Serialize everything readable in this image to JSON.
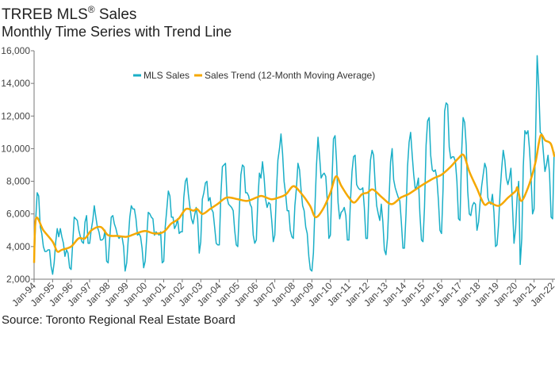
{
  "title": {
    "main": "TRREB MLS",
    "reg": "®",
    "rest": " Sales"
  },
  "subtitle": "Monthly Time Series with Trend Line",
  "source": "Source: Toronto Regional Real Estate Board",
  "chart_data": {
    "type": "line",
    "title": "TRREB MLS® Sales",
    "subtitle": "Monthly Time Series with Trend Line",
    "xlabel": "",
    "ylabel": "",
    "ylim": [
      2000,
      16000
    ],
    "yticks": [
      2000,
      4000,
      6000,
      8000,
      10000,
      12000,
      14000,
      16000
    ],
    "ytick_labels": [
      "2,000",
      "4,000",
      "6,000",
      "8,000",
      "10,000",
      "12,000",
      "14,000",
      "16,000"
    ],
    "xlim": [
      1994,
      2022
    ],
    "xtick_labels": [
      "Jan-94",
      "Jan-95",
      "Jan-96",
      "Jan-97",
      "Jan-98",
      "Jan-99",
      "Jan-00",
      "Jan-01",
      "Jan-02",
      "Jan-03",
      "Jan-04",
      "Jan-05",
      "Jan-06",
      "Jan-07",
      "Jan-08",
      "Jan-09",
      "Jan-10",
      "Jan-11",
      "Jan-12",
      "Jan-13",
      "Jan-14",
      "Jan-15",
      "Jan-16",
      "Jan-17",
      "Jan-18",
      "Jan-19",
      "Jan-20",
      "Jan-21",
      "Jan-22"
    ],
    "grid": false,
    "legend_position": "top-center",
    "colors": {
      "sales": "#1aafc7",
      "trend": "#f5a800",
      "axis": "#777777"
    },
    "series": [
      {
        "name": "MLS Sales",
        "start_year": 1994,
        "frequency": "monthly",
        "values": [
          3000,
          5500,
          7300,
          7100,
          5200,
          4800,
          4000,
          3700,
          3700,
          3800,
          3800,
          2800,
          2300,
          3000,
          4300,
          5100,
          4600,
          5100,
          4600,
          4200,
          3400,
          3800,
          3600,
          2700,
          2600,
          4200,
          5800,
          5700,
          5600,
          5000,
          4600,
          4300,
          4200,
          5500,
          5900,
          4200,
          4200,
          5000,
          5600,
          6500,
          5800,
          5200,
          4900,
          4400,
          4400,
          4500,
          5000,
          3100,
          3000,
          4500,
          5800,
          5900,
          5400,
          5100,
          4700,
          4500,
          4600,
          4600,
          4000,
          2500,
          3000,
          4400,
          5800,
          6500,
          6300,
          6300,
          5700,
          4700,
          4800,
          4600,
          3900,
          2700,
          3100,
          4600,
          6100,
          6000,
          5800,
          5700,
          4700,
          4900,
          4800,
          4700,
          4900,
          3000,
          3100,
          5200,
          6300,
          7400,
          7100,
          5800,
          5800,
          5100,
          5300,
          5700,
          4800,
          4900,
          4900,
          7000,
          8000,
          8200,
          7200,
          6400,
          5700,
          5400,
          5900,
          6400,
          5700,
          3600,
          4300,
          6900,
          7300,
          7900,
          8000,
          6800,
          7000,
          6300,
          6100,
          5200,
          4200,
          4100,
          4100,
          7100,
          8900,
          9000,
          9100,
          7000,
          6600,
          6500,
          6400,
          6200,
          5000,
          4100,
          4000,
          6300,
          8400,
          9000,
          8900,
          7300,
          7300,
          7100,
          6600,
          6400,
          4700,
          4200,
          4400,
          6800,
          8500,
          8200,
          9200,
          8300,
          6900,
          6400,
          6700,
          6600,
          5600,
          4300,
          4700,
          7300,
          9300,
          10000,
          10900,
          9700,
          8000,
          7200,
          6200,
          6200,
          5000,
          4600,
          4500,
          6500,
          7600,
          9100,
          8700,
          7500,
          6500,
          6200,
          5200,
          4800,
          3400,
          2600,
          2500,
          3600,
          6500,
          9000,
          10700,
          9500,
          8200,
          8400,
          8500,
          8300,
          6800,
          4500,
          4700,
          8000,
          10600,
          10800,
          9200,
          6700,
          5700,
          6100,
          6200,
          6400,
          5900,
          4400,
          4400,
          6800,
          8600,
          9500,
          9600,
          7800,
          7600,
          7500,
          7500,
          7600,
          6400,
          4500,
          4500,
          7500,
          9300,
          9900,
          9600,
          7800,
          6500,
          6000,
          5600,
          6600,
          5500,
          3800,
          3500,
          4500,
          6900,
          9200,
          10000,
          8100,
          7600,
          7300,
          7000,
          6800,
          5500,
          3900,
          3900,
          6000,
          8900,
          10400,
          11000,
          9600,
          8400,
          7500,
          7700,
          8200,
          6000,
          4400,
          4300,
          6400,
          10200,
          11700,
          11900,
          9600,
          8700,
          8600,
          8700,
          8200,
          6800,
          5000,
          4800,
          7500,
          12300,
          12800,
          12700,
          10100,
          9400,
          9500,
          9500,
          9200,
          8000,
          5700,
          5600,
          9700,
          11900,
          11600,
          10200,
          7400,
          6000,
          5900,
          6500,
          6700,
          6600,
          5000,
          5500,
          6700,
          7700,
          8400,
          9100,
          8800,
          7000,
          6700,
          6600,
          7200,
          6100,
          4000,
          4100,
          5400,
          7400,
          8800,
          9900,
          9300,
          8200,
          7800,
          8200,
          8800,
          6400,
          4200,
          5100,
          7000,
          8000,
          2900,
          4500,
          8900,
          11100,
          10900,
          11100,
          10000,
          8400,
          6000,
          6300,
          10900,
          15700,
          13800,
          11000,
          10900,
          9800,
          8600,
          9000,
          9600,
          8500,
          5800,
          5700,
          9800
        ]
      },
      {
        "name": "Sales Trend (12-Month Moving Average)",
        "points": [
          [
            1994.0,
            3000
          ],
          [
            1994.1,
            5700
          ],
          [
            1994.5,
            5000
          ],
          [
            1995.0,
            4300
          ],
          [
            1995.25,
            3700
          ],
          [
            1995.5,
            3800
          ],
          [
            1996.0,
            4000
          ],
          [
            1996.4,
            4500
          ],
          [
            1996.75,
            4500
          ],
          [
            1997.1,
            5000
          ],
          [
            1997.6,
            5200
          ],
          [
            1998.0,
            4700
          ],
          [
            1998.5,
            4650
          ],
          [
            1999.0,
            4600
          ],
          [
            1999.5,
            4800
          ],
          [
            2000.0,
            4950
          ],
          [
            2000.5,
            4800
          ],
          [
            2001.0,
            4900
          ],
          [
            2001.4,
            5400
          ],
          [
            2001.8,
            5700
          ],
          [
            2002.2,
            6300
          ],
          [
            2002.6,
            6200
          ],
          [
            2002.8,
            6300
          ],
          [
            2003.1,
            6000
          ],
          [
            2003.5,
            6300
          ],
          [
            2003.9,
            6600
          ],
          [
            2004.4,
            7000
          ],
          [
            2005.0,
            6900
          ],
          [
            2005.5,
            6800
          ],
          [
            2006.0,
            7000
          ],
          [
            2006.3,
            7100
          ],
          [
            2006.8,
            6900
          ],
          [
            2007.2,
            7000
          ],
          [
            2007.6,
            7200
          ],
          [
            2008.0,
            7700
          ],
          [
            2008.4,
            7300
          ],
          [
            2008.9,
            6500
          ],
          [
            2009.2,
            5800
          ],
          [
            2009.6,
            6300
          ],
          [
            2010.0,
            7300
          ],
          [
            2010.3,
            8300
          ],
          [
            2010.6,
            7700
          ],
          [
            2011.0,
            7000
          ],
          [
            2011.3,
            6700
          ],
          [
            2011.7,
            7200
          ],
          [
            2012.0,
            7300
          ],
          [
            2012.3,
            7500
          ],
          [
            2012.8,
            7000
          ],
          [
            2013.3,
            6600
          ],
          [
            2013.8,
            7000
          ],
          [
            2014.2,
            7200
          ],
          [
            2014.6,
            7500
          ],
          [
            2015.0,
            7800
          ],
          [
            2015.6,
            8200
          ],
          [
            2016.0,
            8400
          ],
          [
            2016.5,
            8900
          ],
          [
            2016.9,
            9400
          ],
          [
            2017.2,
            9600
          ],
          [
            2017.5,
            8600
          ],
          [
            2017.9,
            7600
          ],
          [
            2018.3,
            6600
          ],
          [
            2018.6,
            6700
          ],
          [
            2019.1,
            6500
          ],
          [
            2019.6,
            7000
          ],
          [
            2020.0,
            7400
          ],
          [
            2020.1,
            7600
          ],
          [
            2020.3,
            6800
          ],
          [
            2020.6,
            7400
          ],
          [
            2020.9,
            8400
          ],
          [
            2021.1,
            9300
          ],
          [
            2021.35,
            10800
          ],
          [
            2021.6,
            10500
          ],
          [
            2021.9,
            10300
          ],
          [
            2022.1,
            9500
          ]
        ]
      }
    ]
  }
}
